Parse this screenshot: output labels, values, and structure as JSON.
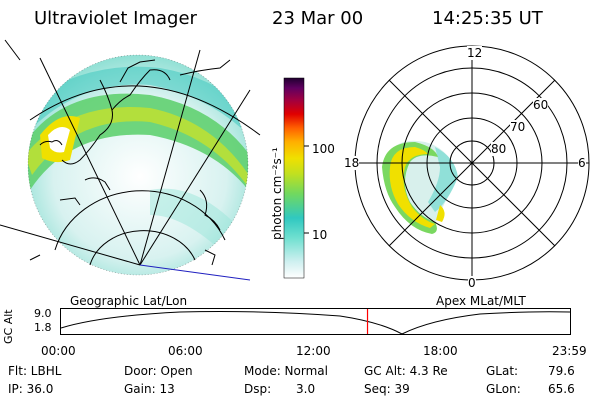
{
  "header": {
    "title": "Ultraviolet Imager",
    "date": "23 Mar 00",
    "time": "14:25:35 UT"
  },
  "colorbar": {
    "unit_label": "photon cm⁻²s⁻¹",
    "ticks": [
      "100",
      "10"
    ],
    "colors": [
      "#ffffff",
      "#d0f0f0",
      "#70e0d0",
      "#30c8c0",
      "#70d860",
      "#c0e020",
      "#f0e000",
      "#ffb000",
      "#ff6000",
      "#e00000",
      "#a00040",
      "#600060",
      "#200030"
    ]
  },
  "geo_map": {
    "caption": "Geographic Lat/Lon"
  },
  "polar_plot": {
    "caption": "Apex MLat/MLT",
    "hour_labels": {
      "top": "12",
      "left": "18",
      "right": "6",
      "bottom": "0"
    },
    "lat_labels": [
      "60",
      "70",
      "80"
    ]
  },
  "altitude_strip": {
    "axis_label": "GC Alt",
    "y_ticks": [
      "9.0",
      "1.8"
    ],
    "time_ticks": [
      "00:00",
      "06:00",
      "12:00",
      "18:00",
      "23:59"
    ],
    "current_time_marker_color": "#ff0000",
    "current_time_fraction": 0.602
  },
  "status": {
    "flt": "Flt: LBHL",
    "ip": "IP: 36.0",
    "door": "Door: Open",
    "gain": "Gain: 13",
    "mode": "Mode: Normal",
    "dsp_label": "Dsp:",
    "dsp_value": "3.0",
    "gc_alt": "GC Alt: 4.3 Re",
    "seq": "Seq: 39",
    "glat_label": "GLat:",
    "glat_value": "79.6",
    "glon_label": "GLon:",
    "glon_value": "65.6"
  }
}
